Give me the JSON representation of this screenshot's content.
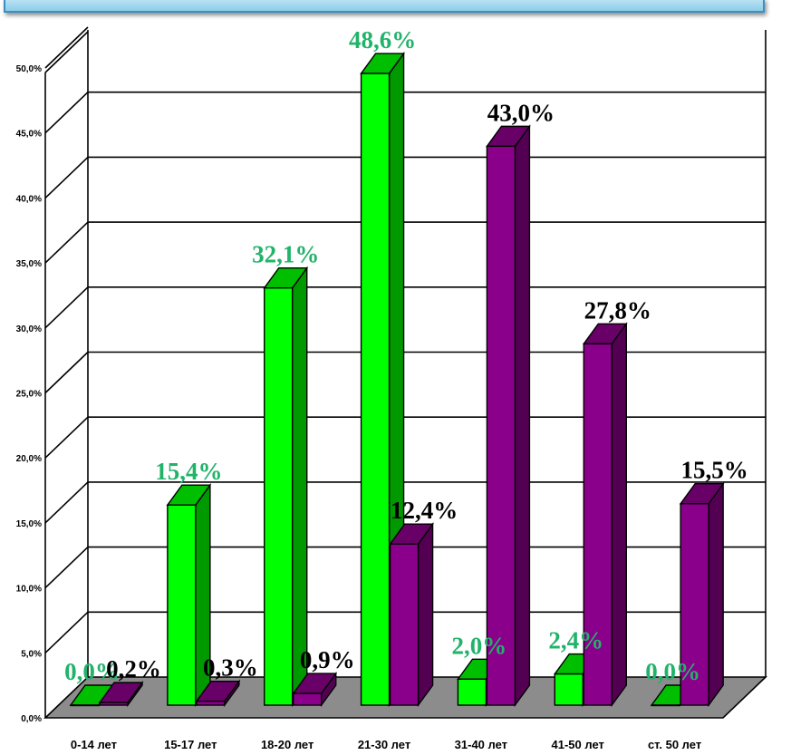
{
  "chart_data": {
    "type": "bar",
    "categories": [
      "0-14 лет",
      "15-17 лет",
      "18-20 лет",
      "21-30 лет",
      "31-40 лет",
      "41-50 лет",
      "ст. 50 лет"
    ],
    "series": [
      {
        "values": [
          0.0,
          15.4,
          32.1,
          48.6,
          2.0,
          2.4,
          0.0
        ],
        "labels": [
          "0,0%",
          "15,4%",
          "32,1%",
          "48,6%",
          "2,0%",
          "2,4%",
          "0,0%"
        ],
        "color": "#00ff00",
        "label_color": "#22b36a"
      },
      {
        "values": [
          0.2,
          0.3,
          0.9,
          12.4,
          43.0,
          27.8,
          15.5
        ],
        "labels": [
          "0,2%",
          "0,3%",
          "0,9%",
          "12,4%",
          "43,0%",
          "27,8%",
          "15,5%"
        ],
        "color": "#8b008b",
        "label_color": "#000000"
      }
    ],
    "yticks": [
      "0,0%",
      "5,0%",
      "10,0%",
      "15,0%",
      "20,0%",
      "25,0%",
      "30,0%",
      "35,0%",
      "40,0%",
      "45,0%",
      "50,0%"
    ],
    "ylim": [
      0,
      50
    ],
    "ystep": 5,
    "grid": true,
    "style": "3d-column"
  }
}
